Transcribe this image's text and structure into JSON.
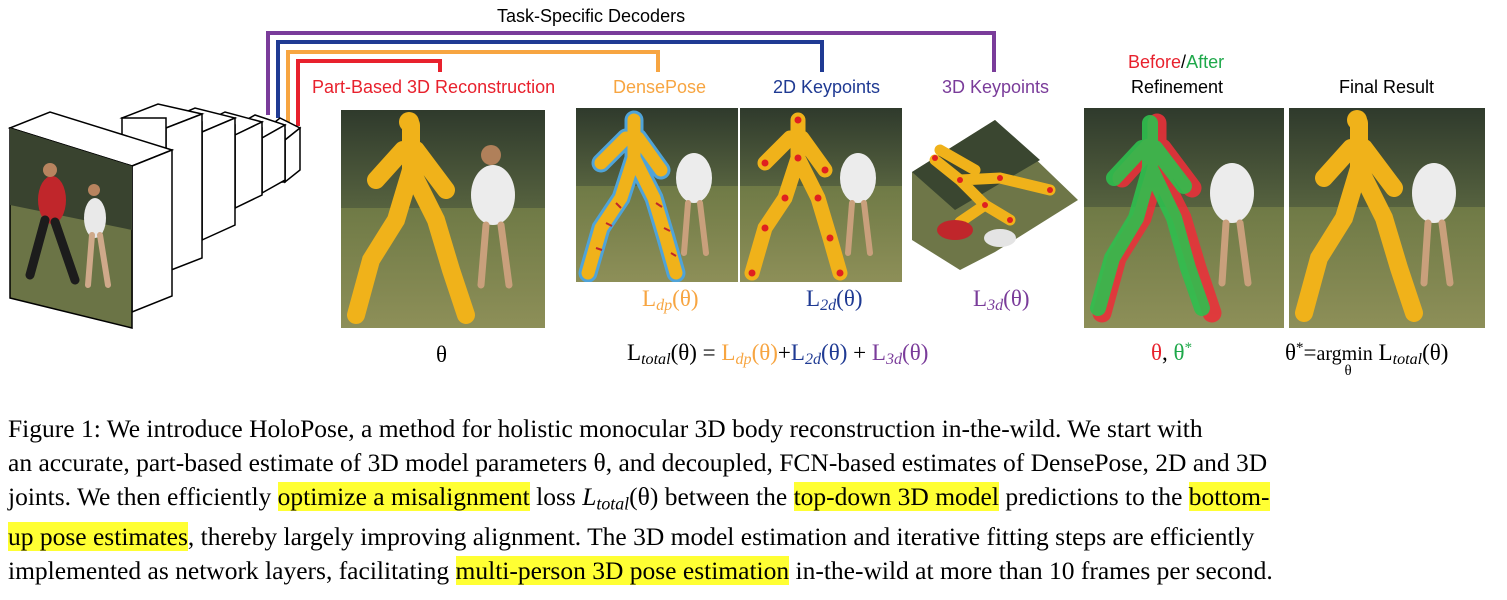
{
  "header": {
    "decoders_title": "Task-Specific Decoders",
    "part_based": "Part-Based 3D Reconstruction",
    "densepose": "DensePose",
    "keypoints_2d": "2D Keypoints",
    "keypoints_3d": "3D Keypoints",
    "before": "Before",
    "slash": "/",
    "after": "After",
    "refinement": "Refinement",
    "final_result": "Final Result"
  },
  "colors": {
    "red": "#e8212d",
    "orange": "#f7a541",
    "blue": "#1f3a93",
    "purple": "#7a3c9a",
    "green": "#1ea84a"
  },
  "math": {
    "theta": "θ",
    "L": "L",
    "dp": "dp",
    "d2": "2d",
    "d3": "3d",
    "total": "total",
    "theta_paren": "(θ)",
    "eq": "=",
    "plus": "+",
    "comma": ",",
    "star": "*",
    "argmin": "argmin",
    "argmin_sub": "θ"
  },
  "caption": {
    "l1": "Figure 1:   We introduce HoloPose, a method for holistic monocular 3D body reconstruction in-the-wild.  We start with",
    "l2": "an accurate, part-based estimate of 3D model parameters θ, and decoupled, FCN-based estimates of DensePose, 2D and 3D",
    "l3a": "joints. We then efficiently ",
    "l3h1": "optimize a misalignment",
    "l3b": " loss ",
    "l3L": "L",
    "l3sub": "total",
    "l3c": "(θ) between the ",
    "l3h2": "top-down 3D model",
    "l3d": " predictions to the ",
    "l3h3": "bottom-",
    "l4h": "up pose estimates",
    "l4b": ", thereby largely improving alignment. The 3D model estimation and iterative fitting steps are efficiently",
    "l5a": "implemented as network layers, facilitating ",
    "l5h": "multi-person 3D pose estimation",
    "l5b": " in-the-wild at more than 10 frames per second."
  }
}
